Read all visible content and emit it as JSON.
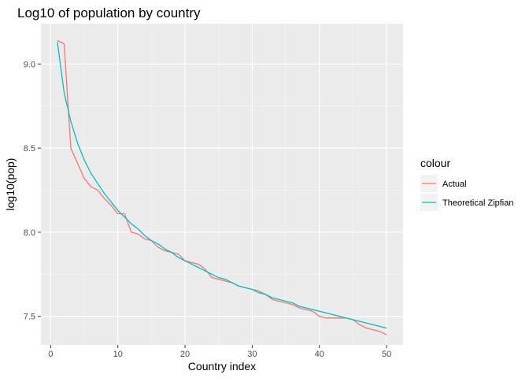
{
  "chart_data": {
    "type": "line",
    "title": "Log10 of population by country",
    "xlabel": "Country index",
    "ylabel": "log10(pop)",
    "xlim": [
      -1.45,
      52.45
    ],
    "ylim": [
      7.33,
      9.24
    ],
    "x_ticks": [
      0,
      10,
      20,
      30,
      40,
      50
    ],
    "x_tick_labels": [
      "0",
      "10",
      "20",
      "30",
      "40",
      "50"
    ],
    "y_ticks": [
      7.5,
      8.0,
      8.5,
      9.0
    ],
    "y_tick_labels": [
      "7.5",
      "8.0",
      "8.5",
      "9.0"
    ],
    "grid": true,
    "legend": {
      "title": "colour",
      "position": "right"
    },
    "x": [
      1,
      2,
      3,
      4,
      5,
      6,
      7,
      8,
      9,
      10,
      11,
      12,
      13,
      14,
      15,
      16,
      17,
      18,
      19,
      20,
      21,
      22,
      23,
      24,
      25,
      26,
      27,
      28,
      29,
      30,
      31,
      32,
      33,
      34,
      35,
      36,
      37,
      38,
      39,
      40,
      41,
      42,
      43,
      44,
      45,
      46,
      47,
      48,
      49,
      50
    ],
    "series": [
      {
        "name": "Actual",
        "color": "#F8766D",
        "values": [
          9.14,
          9.12,
          8.5,
          8.41,
          8.32,
          8.27,
          8.25,
          8.2,
          8.16,
          8.11,
          8.11,
          8.0,
          7.99,
          7.96,
          7.95,
          7.91,
          7.89,
          7.88,
          7.87,
          7.83,
          7.82,
          7.81,
          7.78,
          7.73,
          7.72,
          7.71,
          7.7,
          7.68,
          7.67,
          7.66,
          7.65,
          7.63,
          7.6,
          7.59,
          7.58,
          7.57,
          7.55,
          7.54,
          7.53,
          7.5,
          7.49,
          7.49,
          7.49,
          7.49,
          7.48,
          7.45,
          7.43,
          7.42,
          7.41,
          7.39
        ]
      },
      {
        "name": "Theoretical Zipfian",
        "color": "#00BFC4",
        "values": [
          9.13,
          8.83,
          8.66,
          8.53,
          8.43,
          8.35,
          8.29,
          8.23,
          8.18,
          8.13,
          8.09,
          8.05,
          8.02,
          7.98,
          7.95,
          7.93,
          7.9,
          7.88,
          7.85,
          7.83,
          7.81,
          7.79,
          7.77,
          7.75,
          7.73,
          7.72,
          7.7,
          7.68,
          7.67,
          7.66,
          7.64,
          7.63,
          7.61,
          7.6,
          7.59,
          7.58,
          7.56,
          7.55,
          7.54,
          7.53,
          7.52,
          7.51,
          7.5,
          7.49,
          7.48,
          7.47,
          7.46,
          7.45,
          7.44,
          7.43
        ]
      }
    ]
  }
}
